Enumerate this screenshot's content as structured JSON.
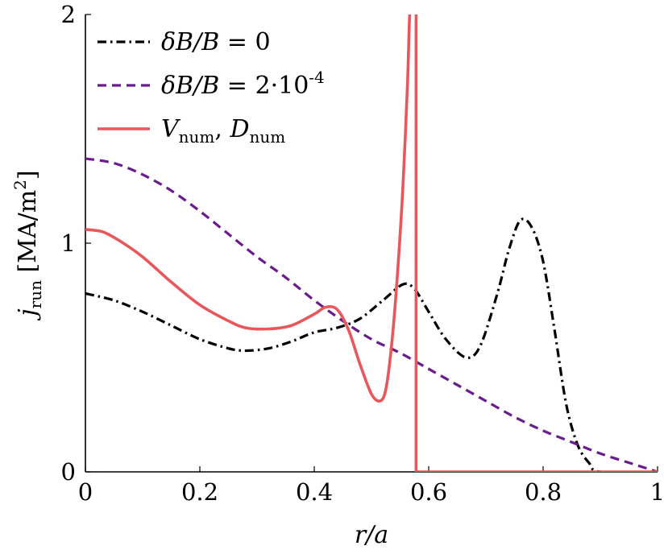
{
  "chart_data": {
    "type": "line",
    "xlabel": "r/a",
    "ylabel": "j_run [MA/m^2]",
    "xlim": [
      0,
      1
    ],
    "ylim": [
      0,
      2
    ],
    "x_ticks": [
      "0",
      "0.2",
      "0.4",
      "0.6",
      "0.8",
      "1"
    ],
    "y_ticks": [
      "0",
      "1",
      "2"
    ],
    "grid": false,
    "legend_position": "top-left",
    "series": [
      {
        "name": "δB/B = 0",
        "legend_text": {
          "lhs": "δB/B = ",
          "rhs": "0",
          "sup": ""
        },
        "color": "#000000",
        "dash": "dash-dot",
        "points": [
          [
            0.0,
            0.78
          ],
          [
            0.05,
            0.75
          ],
          [
            0.1,
            0.7
          ],
          [
            0.15,
            0.64
          ],
          [
            0.2,
            0.58
          ],
          [
            0.25,
            0.54
          ],
          [
            0.28,
            0.53
          ],
          [
            0.32,
            0.54
          ],
          [
            0.36,
            0.57
          ],
          [
            0.4,
            0.61
          ],
          [
            0.44,
            0.63
          ],
          [
            0.48,
            0.67
          ],
          [
            0.52,
            0.75
          ],
          [
            0.555,
            0.82
          ],
          [
            0.575,
            0.8
          ],
          [
            0.6,
            0.7
          ],
          [
            0.63,
            0.58
          ],
          [
            0.665,
            0.5
          ],
          [
            0.69,
            0.55
          ],
          [
            0.72,
            0.78
          ],
          [
            0.74,
            0.97
          ],
          [
            0.76,
            1.1
          ],
          [
            0.78,
            1.07
          ],
          [
            0.8,
            0.92
          ],
          [
            0.82,
            0.62
          ],
          [
            0.84,
            0.3
          ],
          [
            0.86,
            0.12
          ],
          [
            0.88,
            0.04
          ],
          [
            0.9,
            0.0
          ],
          [
            1.0,
            0.0
          ]
        ]
      },
      {
        "name": "δB/B = 2·10^-4",
        "legend_text": {
          "lhs": "δB/B = ",
          "rhs": "2·10",
          "sup": "-4"
        },
        "color": "#6a1b8e",
        "dash": "dashed",
        "points": [
          [
            0.0,
            1.37
          ],
          [
            0.05,
            1.35
          ],
          [
            0.1,
            1.3
          ],
          [
            0.15,
            1.23
          ],
          [
            0.2,
            1.14
          ],
          [
            0.25,
            1.04
          ],
          [
            0.3,
            0.94
          ],
          [
            0.35,
            0.85
          ],
          [
            0.4,
            0.75
          ],
          [
            0.45,
            0.66
          ],
          [
            0.5,
            0.58
          ],
          [
            0.55,
            0.52
          ],
          [
            0.6,
            0.45
          ],
          [
            0.65,
            0.38
          ],
          [
            0.7,
            0.31
          ],
          [
            0.75,
            0.24
          ],
          [
            0.8,
            0.18
          ],
          [
            0.85,
            0.13
          ],
          [
            0.9,
            0.08
          ],
          [
            0.95,
            0.04
          ],
          [
            1.0,
            0.0
          ]
        ]
      },
      {
        "name": "V_num, D_num",
        "legend_text": {
          "v": "V",
          "v_sub": "num",
          "sep": ", ",
          "d": "D",
          "d_sub": "num"
        },
        "color": "#e8575c",
        "dash": "solid",
        "points": [
          [
            0.0,
            1.06
          ],
          [
            0.03,
            1.05
          ],
          [
            0.06,
            1.01
          ],
          [
            0.1,
            0.94
          ],
          [
            0.15,
            0.83
          ],
          [
            0.2,
            0.73
          ],
          [
            0.25,
            0.66
          ],
          [
            0.28,
            0.63
          ],
          [
            0.32,
            0.625
          ],
          [
            0.36,
            0.64
          ],
          [
            0.4,
            0.69
          ],
          [
            0.42,
            0.72
          ],
          [
            0.44,
            0.71
          ],
          [
            0.46,
            0.62
          ],
          [
            0.48,
            0.47
          ],
          [
            0.5,
            0.34
          ],
          [
            0.515,
            0.31
          ],
          [
            0.525,
            0.36
          ],
          [
            0.535,
            0.55
          ],
          [
            0.545,
            0.85
          ],
          [
            0.555,
            1.25
          ],
          [
            0.563,
            1.7
          ],
          [
            0.568,
            2.05
          ],
          [
            0.578,
            2.05
          ],
          [
            0.578,
            0.0
          ],
          [
            0.58,
            0.0
          ],
          [
            1.0,
            0.0
          ]
        ]
      }
    ]
  }
}
